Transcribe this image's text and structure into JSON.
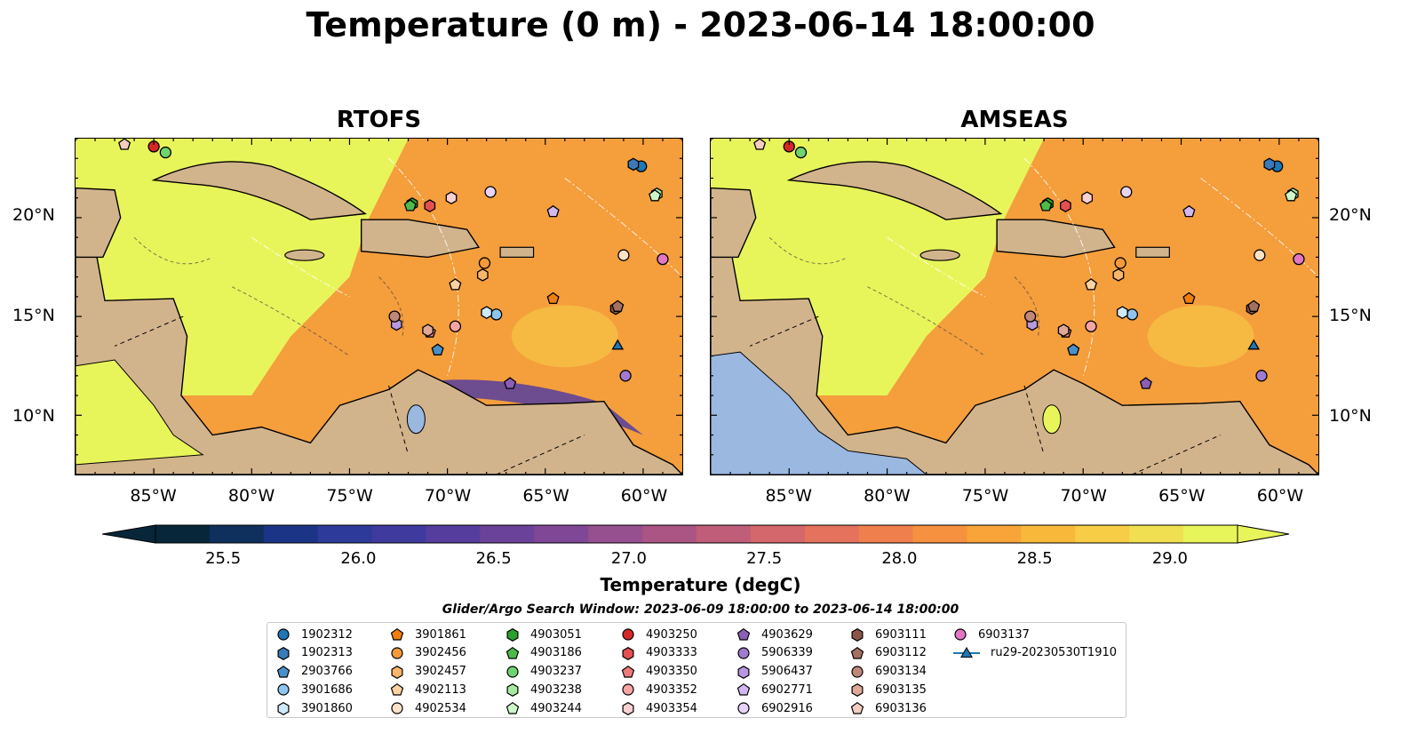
{
  "title": "Temperature (0 m) - 2023-06-14 18:00:00",
  "panels": [
    {
      "id": "rtofs",
      "title": "RTOFS"
    },
    {
      "id": "amseas",
      "title": "AMSEAS"
    }
  ],
  "lon_ticks": [
    "85°W",
    "80°W",
    "75°W",
    "70°W",
    "65°W",
    "60°W"
  ],
  "lat_ticks": [
    "20°N",
    "15°N",
    "10°N"
  ],
  "colors": {
    "land": "#d2b48c",
    "ocean_warm": "#f59e3c",
    "ocean_hot": "#e8f55a",
    "missing": "#9ab8e0"
  },
  "colorbar": {
    "title": "Temperature (degC)",
    "ticks": [
      "25.5",
      "26.0",
      "26.5",
      "27.0",
      "27.5",
      "28.0",
      "28.5",
      "29.0"
    ],
    "colors": [
      "#08263a",
      "#0f2f5c",
      "#1c3485",
      "#2e3a9a",
      "#3f3a9e",
      "#553d9e",
      "#6b429a",
      "#804796",
      "#964f8f",
      "#ab5584",
      "#c05d78",
      "#d4676b",
      "#e4725d",
      "#f07f4e",
      "#f6913f",
      "#f8a438",
      "#f8b93b",
      "#f6cd45",
      "#f0e051",
      "#e8f55a"
    ]
  },
  "search_window": "Glider/Argo Search Window: 2023-06-09 18:00:00 to 2023-06-14 18:00:00",
  "chart_data": {
    "type": "heatmap",
    "variable": "Temperature (0 m)",
    "units": "degC",
    "time": "2023-06-14 18:00:00",
    "colorbar_range": [
      25.25,
      29.25
    ],
    "lon_range": [
      -89,
      -58
    ],
    "lat_range": [
      7,
      24
    ],
    "panels": [
      "RTOFS",
      "AMSEAS"
    ],
    "platforms": [
      {
        "name": "1902312",
        "marker": "circle",
        "color": "#1f77b4",
        "lon": -60.1,
        "lat": 22.6
      },
      {
        "name": "1902313",
        "marker": "hexagon",
        "color": "#3a7ab8",
        "lon": -60.5,
        "lat": 22.7
      },
      {
        "name": "2903766",
        "marker": "pentagon",
        "color": "#4a90c8",
        "lon": -70.5,
        "lat": 13.3
      },
      {
        "name": "3901686",
        "marker": "circle",
        "color": "#8ec5ec",
        "lon": -67.5,
        "lat": 15.1
      },
      {
        "name": "3901860",
        "marker": "hexagon",
        "color": "#cde9fb",
        "lon": -68.0,
        "lat": 15.2
      },
      {
        "name": "3901861",
        "marker": "pentagon",
        "color": "#f07f0e",
        "lon": -64.6,
        "lat": 15.9
      },
      {
        "name": "3902456",
        "marker": "circle",
        "color": "#f49a3a",
        "lon": -68.1,
        "lat": 17.7
      },
      {
        "name": "3902457",
        "marker": "hexagon",
        "color": "#f8b66a",
        "lon": -68.2,
        "lat": 17.1
      },
      {
        "name": "4902113",
        "marker": "pentagon",
        "color": "#fbd2a0",
        "lon": -69.6,
        "lat": 16.6
      },
      {
        "name": "4902534",
        "marker": "circle",
        "color": "#fde2c8",
        "lon": -61.0,
        "lat": 18.1
      },
      {
        "name": "4903051",
        "marker": "hexagon",
        "color": "#2ca02c",
        "lon": -71.8,
        "lat": 20.7
      },
      {
        "name": "4903186",
        "marker": "pentagon",
        "color": "#4cbb4c",
        "lon": -71.9,
        "lat": 20.6
      },
      {
        "name": "4903237",
        "marker": "circle",
        "color": "#6fd46f",
        "lon": -84.4,
        "lat": 23.3
      },
      {
        "name": "4903238",
        "marker": "hexagon",
        "color": "#a6eaa0",
        "lon": -59.3,
        "lat": 21.2
      },
      {
        "name": "4903244",
        "marker": "pentagon",
        "color": "#cdf7c8",
        "lon": -59.4,
        "lat": 21.1
      },
      {
        "name": "4903250",
        "marker": "circle",
        "color": "#d62728",
        "lon": -85.0,
        "lat": 23.6
      },
      {
        "name": "4903333",
        "marker": "hexagon",
        "color": "#e45050",
        "lon": -70.9,
        "lat": 20.6
      },
      {
        "name": "4903350",
        "marker": "pentagon",
        "color": "#ee7a7a",
        "lon": -70.9,
        "lat": 14.2
      },
      {
        "name": "4903352",
        "marker": "circle",
        "color": "#f6a5a5",
        "lon": -69.6,
        "lat": 14.5
      },
      {
        "name": "4903354",
        "marker": "hexagon",
        "color": "#fbd0d0",
        "lon": -69.8,
        "lat": 21.0
      },
      {
        "name": "4903629",
        "marker": "pentagon",
        "color": "#8a5fb8",
        "lon": -66.8,
        "lat": 11.6
      },
      {
        "name": "5906339",
        "marker": "circle",
        "color": "#a07ad0",
        "lon": -60.9,
        "lat": 12.0
      },
      {
        "name": "5906437",
        "marker": "hexagon",
        "color": "#b898e0",
        "lon": -72.6,
        "lat": 14.6
      },
      {
        "name": "6902771",
        "marker": "pentagon",
        "color": "#d2b8f0",
        "lon": -64.6,
        "lat": 20.3
      },
      {
        "name": "6902916",
        "marker": "circle",
        "color": "#e6d4f8",
        "lon": -67.8,
        "lat": 21.3
      },
      {
        "name": "6903111",
        "marker": "hexagon",
        "color": "#8c564b",
        "lon": -61.4,
        "lat": 15.4
      },
      {
        "name": "6903112",
        "marker": "pentagon",
        "color": "#a47060",
        "lon": -61.3,
        "lat": 15.5
      },
      {
        "name": "6903134",
        "marker": "circle",
        "color": "#c08878",
        "lon": -72.7,
        "lat": 15.0
      },
      {
        "name": "6903135",
        "marker": "hexagon",
        "color": "#e0a898",
        "lon": -71.0,
        "lat": 14.3
      },
      {
        "name": "6903136",
        "marker": "pentagon",
        "color": "#f4ccc0",
        "lon": -86.5,
        "lat": 23.7
      },
      {
        "name": "6903137",
        "marker": "circle",
        "color": "#e377c2",
        "lon": -59.0,
        "lat": 17.9
      },
      {
        "name": "ru29-20230530T1910",
        "marker": "triangle",
        "color": "#1f77b4",
        "lon": -61.3,
        "lat": 13.5
      }
    ]
  }
}
